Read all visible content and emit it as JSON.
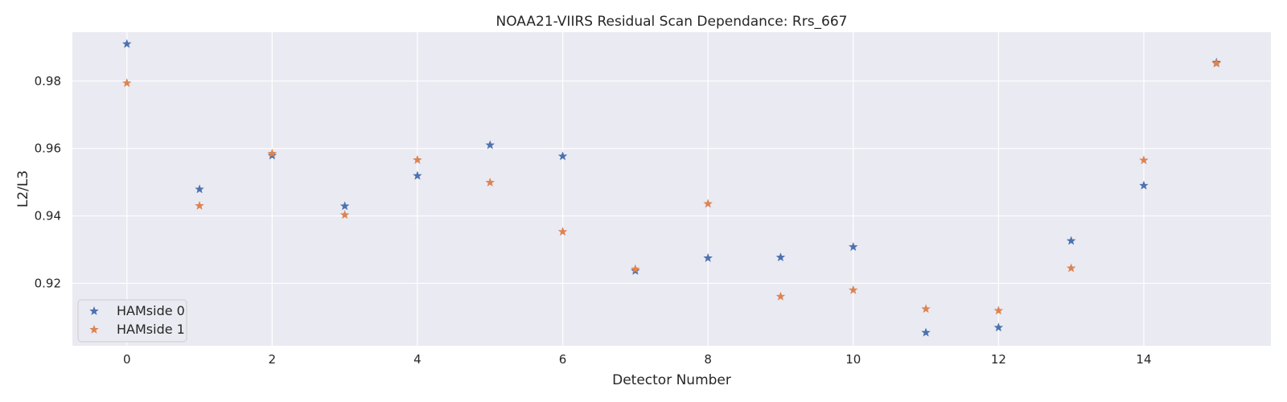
{
  "chart_data": {
    "type": "scatter",
    "title": "NOAA21-VIIRS Residual Scan Dependance: Rrs_667",
    "xlabel": "Detector Number",
    "ylabel": "L2/L3",
    "xlim": [
      -0.75,
      15.75
    ],
    "ylim": [
      0.9015,
      0.9945
    ],
    "x_ticks": [
      0,
      2,
      4,
      6,
      8,
      10,
      12,
      14
    ],
    "y_ticks": [
      0.92,
      0.94,
      0.96,
      0.98
    ],
    "y_tick_labels": [
      "0.92",
      "0.94",
      "0.96",
      "0.98"
    ],
    "grid": true,
    "legend_position": "lower-left",
    "x": [
      0,
      1,
      2,
      3,
      4,
      5,
      6,
      7,
      8,
      9,
      10,
      11,
      12,
      13,
      14,
      15
    ],
    "series": [
      {
        "name": "HAMside 0",
        "color": "#4c72b0",
        "marker": "star",
        "values": [
          0.991,
          0.9479,
          0.9579,
          0.9429,
          0.9519,
          0.961,
          0.9577,
          0.9237,
          0.9275,
          0.9277,
          0.9308,
          0.9054,
          0.9069,
          0.9326,
          0.949,
          0.9855
        ]
      },
      {
        "name": "HAMside 1",
        "color": "#dd8452",
        "marker": "star",
        "values": [
          0.9794,
          0.943,
          0.9585,
          0.9403,
          0.9566,
          0.9499,
          0.9353,
          0.9242,
          0.9436,
          0.9161,
          0.918,
          0.9124,
          0.9119,
          0.9245,
          0.9565,
          0.9852
        ]
      }
    ]
  }
}
